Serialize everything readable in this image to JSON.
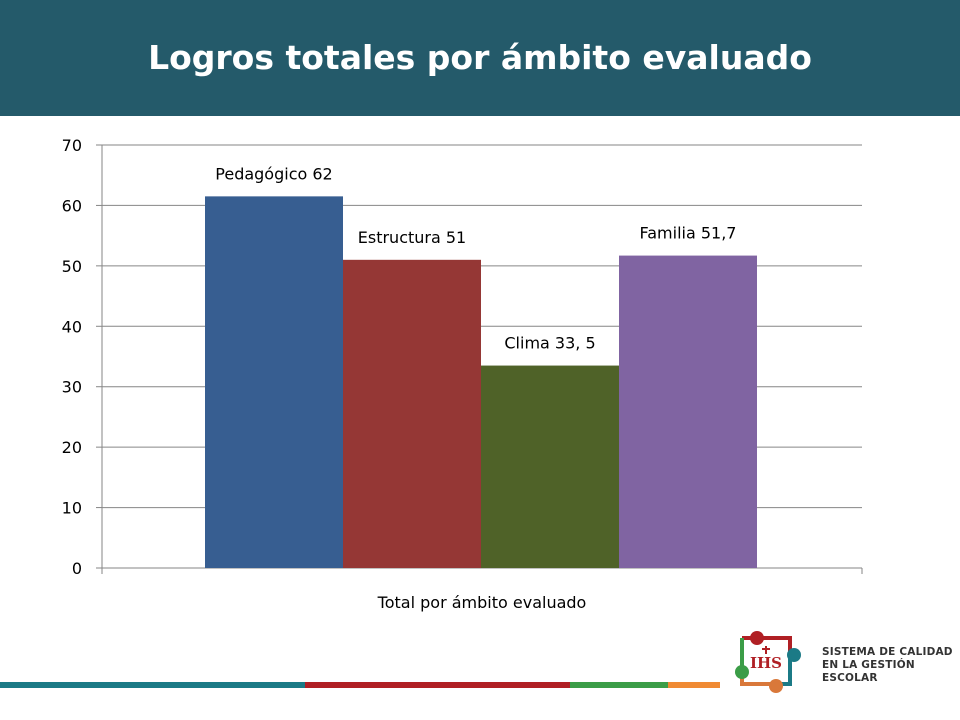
{
  "header": {
    "title": "Logros totales por ámbito evaluado"
  },
  "colors": {
    "header_bg": "#245a6a",
    "series": [
      "#375e91",
      "#953735",
      "#4f6228",
      "#8064a2"
    ]
  },
  "chart_data": {
    "type": "bar",
    "title": "Logros totales por ámbito evaluado",
    "xlabel": "",
    "ylabel": "",
    "categories": [
      "Total por ámbito evaluado"
    ],
    "series": [
      {
        "name": "Pedagógico",
        "values": [
          61.5
        ],
        "label": "Pedagógico  62",
        "color": "#375e91"
      },
      {
        "name": "Estructura",
        "values": [
          51
        ],
        "label": "Estructura 51",
        "color": "#953735"
      },
      {
        "name": "Clima",
        "values": [
          33.5
        ],
        "label": "Clima 33, 5",
        "color": "#4f6228"
      },
      {
        "name": "Familia",
        "values": [
          51.7
        ],
        "label": "Familia 51,7",
        "color": "#8064a2"
      }
    ],
    "ylim": [
      0,
      70
    ],
    "yticks": [
      0,
      10,
      20,
      30,
      40,
      50,
      60,
      70
    ],
    "grid": true,
    "legend": "none"
  },
  "footer_stripe": [
    "#1b7a86",
    "#b01f24",
    "#3b9d47",
    "#f08a33"
  ],
  "logo": {
    "mark_text": "IHS",
    "lines": [
      "SISTEMA DE CALIDAD",
      "EN LA GESTIÓN",
      "ESCOLAR"
    ],
    "dot_colors": [
      "#b01f24",
      "#1b7a86",
      "#3b9d47",
      "#d9783a"
    ]
  }
}
